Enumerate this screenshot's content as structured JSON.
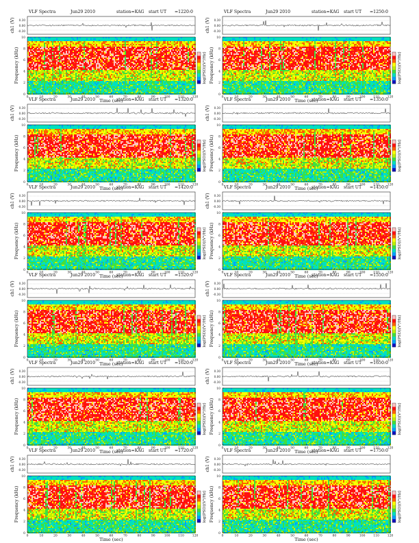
{
  "chart_data": {
    "type": "heatmap",
    "figure": "VLF spectrogram grid, 6 rows x 2 columns",
    "common": {
      "header_title": "VLF Spectra",
      "date": "Jun29 2010",
      "station": "station=KAG",
      "start_label": "start  UT",
      "ch_axis_label": "ch1 (V)",
      "ch_ticks": [
        "0.30",
        "0.00",
        "-0.30"
      ],
      "freq_axis_label": "Frequency (kHz)",
      "freq_ticks": [
        0,
        2,
        4,
        6,
        8,
        10
      ],
      "ylim_khz": [
        0,
        10
      ],
      "time_axis_label": "Time  (sec)",
      "time_ticks": [
        0,
        10,
        20,
        30,
        40,
        50,
        60,
        70,
        80,
        90,
        100,
        110,
        120
      ],
      "xlim_sec": [
        0,
        120
      ],
      "colorbar_label": "log(PSD)(V²/Hz)",
      "colormap": [
        "#1010c0",
        "#00a0ff",
        "#00e0c0",
        "#40e040",
        "#c0f000",
        "#ffff00",
        "#ff6000",
        "#ff1010",
        "#ffc0c0"
      ],
      "band_structure_khz": [
        {
          "range": [
            0,
            2.2
          ],
          "level": "green/cyan, moderate"
        },
        {
          "range": [
            2.2,
            4.2
          ],
          "level": "green/yellow, moderate"
        },
        {
          "range": [
            4.2,
            8.2
          ],
          "level": "red/pink, high"
        },
        {
          "range": [
            8.2,
            9.2
          ],
          "level": "yellow/red mix"
        },
        {
          "range": [
            9.2,
            10
          ],
          "level": "cyan, low"
        }
      ]
    },
    "panels": [
      {
        "time": "=1220:0",
        "row": 1,
        "col": "left"
      },
      {
        "time": "=1250:0",
        "row": 1,
        "col": "right"
      },
      {
        "time": "=1320:0",
        "row": 2,
        "col": "left"
      },
      {
        "time": "=1350:0",
        "row": 2,
        "col": "right"
      },
      {
        "time": "=1420:0",
        "row": 3,
        "col": "left"
      },
      {
        "time": "=1450:0",
        "row": 3,
        "col": "right"
      },
      {
        "time": "=1520:0",
        "row": 4,
        "col": "left"
      },
      {
        "time": "=1550:0",
        "row": 4,
        "col": "right"
      },
      {
        "time": "=1620:0",
        "row": 5,
        "col": "left"
      },
      {
        "time": "=1650:0",
        "row": 5,
        "col": "right"
      },
      {
        "time": "=1720:0",
        "row": 6,
        "col": "left"
      },
      {
        "time": "=1750:0",
        "row": 6,
        "col": "right"
      }
    ]
  }
}
